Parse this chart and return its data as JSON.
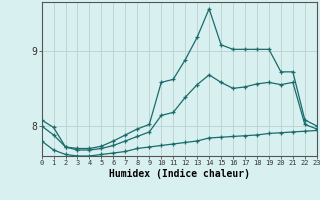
{
  "xlabel": "Humidex (Indice chaleur)",
  "background_color": "#d9f0f0",
  "grid_color": "#c0d4d4",
  "line_color": "#1a6b6b",
  "x_ticks": [
    0,
    1,
    2,
    3,
    4,
    5,
    6,
    7,
    8,
    9,
    10,
    11,
    12,
    13,
    14,
    15,
    16,
    17,
    18,
    19,
    20,
    21,
    22,
    23
  ],
  "y_ticks": [
    8,
    9
  ],
  "xlim": [
    0,
    23
  ],
  "ylim": [
    7.6,
    9.65
  ],
  "series1_y": [
    8.08,
    7.98,
    7.72,
    7.7,
    7.7,
    7.73,
    7.8,
    7.88,
    7.96,
    8.02,
    8.58,
    8.62,
    8.88,
    9.18,
    9.56,
    9.08,
    9.02,
    9.02,
    9.02,
    9.02,
    8.72,
    8.72,
    8.08,
    8.0
  ],
  "series2_y": [
    7.8,
    7.68,
    7.62,
    7.6,
    7.6,
    7.62,
    7.64,
    7.66,
    7.7,
    7.72,
    7.74,
    7.76,
    7.78,
    7.8,
    7.84,
    7.85,
    7.86,
    7.87,
    7.88,
    7.9,
    7.91,
    7.92,
    7.93,
    7.94
  ],
  "series3_y": [
    8.0,
    7.88,
    7.72,
    7.68,
    7.68,
    7.7,
    7.74,
    7.8,
    7.86,
    7.92,
    8.14,
    8.18,
    8.38,
    8.55,
    8.68,
    8.58,
    8.5,
    8.52,
    8.56,
    8.58,
    8.55,
    8.58,
    8.02,
    7.96
  ]
}
